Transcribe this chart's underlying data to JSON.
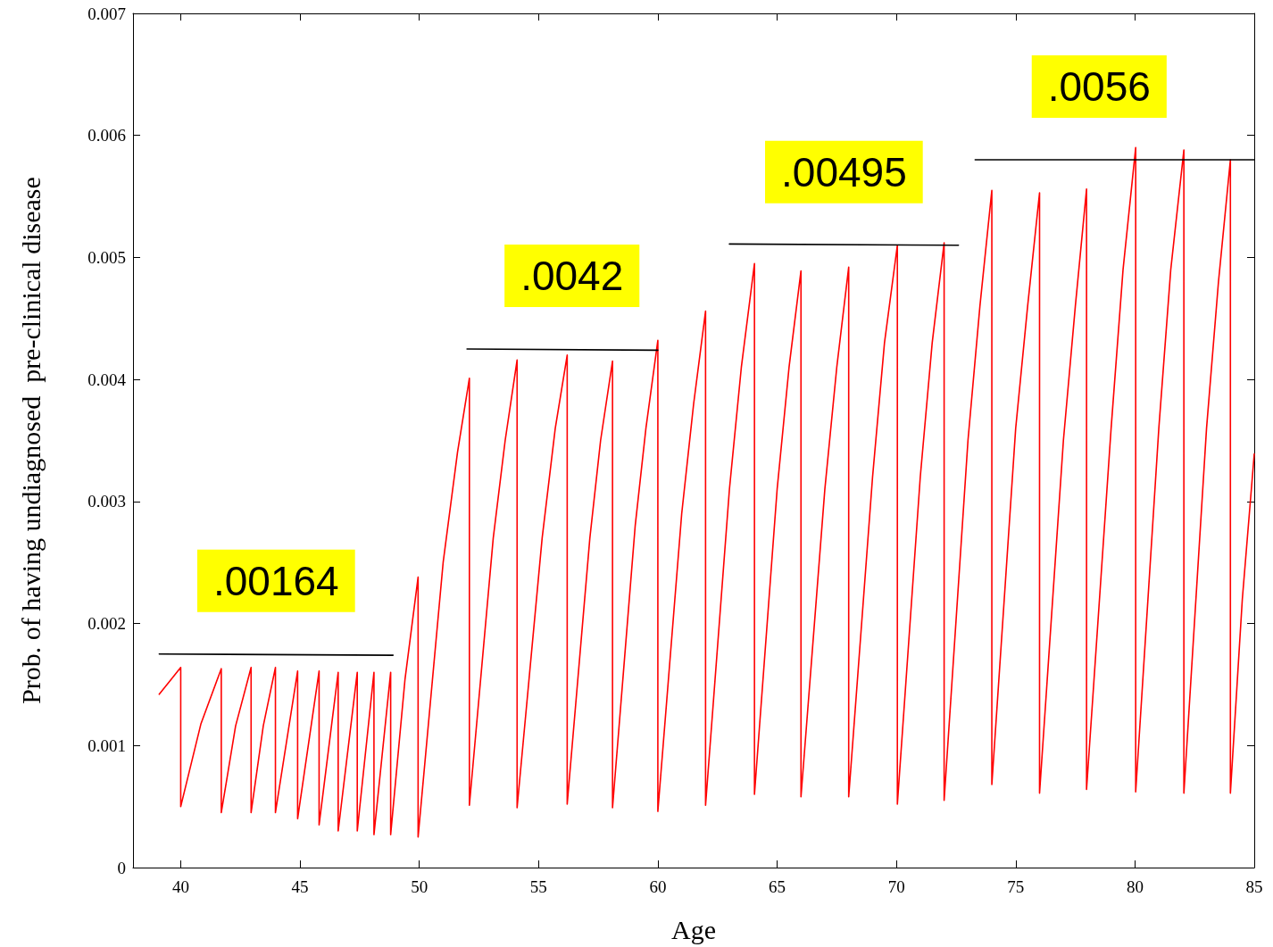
{
  "chart_data": {
    "type": "line",
    "xlabel": "Age",
    "ylabel": "Prob. of having undiagnosed  pre-clinical disease",
    "xlim": [
      38,
      85
    ],
    "xticks": [
      40,
      45,
      50,
      55,
      60,
      65,
      70,
      75,
      80,
      85
    ],
    "ylim": [
      0,
      0.007
    ],
    "yticks": [
      0,
      0.001,
      0.002,
      0.003,
      0.004,
      0.005,
      0.006,
      0.007
    ],
    "grid": false,
    "marker": "none",
    "line_style": "solid",
    "series": [
      {
        "color": "#ff0000",
        "x": [
          39.1,
          40.0,
          40.0,
          40.85,
          41.7,
          41.7,
          42.3,
          42.95,
          42.95,
          43.46,
          43.97,
          43.97,
          44.9,
          44.9,
          45.8,
          45.8,
          46.6,
          46.6,
          47.4,
          47.4,
          48.1,
          48.1,
          48.8,
          48.8,
          49.4,
          49.95,
          49.95,
          51.0,
          51.6,
          52.1,
          52.1,
          53.1,
          53.6,
          54.1,
          54.1,
          55.15,
          55.7,
          56.2,
          56.2,
          57.15,
          57.6,
          58.1,
          58.1,
          59.05,
          59.5,
          60.0,
          60.0,
          61.0,
          61.5,
          62.0,
          62.0,
          63.0,
          63.5,
          64.05,
          64.05,
          65.0,
          65.5,
          66.0,
          66.0,
          67.0,
          67.5,
          68.0,
          68.0,
          69.0,
          69.5,
          70.04,
          70.04,
          71.0,
          71.5,
          72.0,
          72.0,
          73.0,
          73.5,
          74.0,
          74.0,
          75.0,
          75.5,
          76.0,
          76.0,
          77.0,
          77.5,
          77.97,
          77.97,
          79.0,
          79.5,
          80.03,
          80.03,
          81.0,
          81.5,
          82.05,
          82.05,
          83.0,
          83.5,
          84.0,
          84.0,
          84.5,
          85.0
        ],
        "values": [
          0.00142,
          0.00164,
          0.0005,
          0.00118,
          0.00163,
          0.00045,
          0.00116,
          0.00164,
          0.00045,
          0.00116,
          0.00164,
          0.00045,
          0.00161,
          0.0004,
          0.00161,
          0.00035,
          0.0016,
          0.0003,
          0.0016,
          0.0003,
          0.0016,
          0.00027,
          0.0016,
          0.00027,
          0.00154,
          0.00238,
          0.00025,
          0.0025,
          0.0034,
          0.00401,
          0.00051,
          0.0027,
          0.0035,
          0.00416,
          0.00049,
          0.0027,
          0.0036,
          0.0042,
          0.00052,
          0.0027,
          0.0035,
          0.00415,
          0.00049,
          0.0028,
          0.0036,
          0.00432,
          0.00046,
          0.0029,
          0.0038,
          0.00456,
          0.00051,
          0.0031,
          0.0041,
          0.00495,
          0.0006,
          0.0031,
          0.0041,
          0.00489,
          0.00058,
          0.0031,
          0.0041,
          0.00492,
          0.00058,
          0.0032,
          0.0043,
          0.0051,
          0.00052,
          0.0032,
          0.0043,
          0.00512,
          0.00055,
          0.0035,
          0.0046,
          0.00555,
          0.00068,
          0.0036,
          0.0046,
          0.00553,
          0.00061,
          0.0035,
          0.0046,
          0.00556,
          0.00064,
          0.0036,
          0.0049,
          0.0059,
          0.00062,
          0.0036,
          0.0049,
          0.00588,
          0.00061,
          0.0036,
          0.0048,
          0.0058,
          0.00061,
          0.0022,
          0.00339
        ]
      },
      {
        "color": "#000000",
        "x": [
          39.1,
          48.9
        ],
        "values": [
          0.00175,
          0.00174
        ]
      },
      {
        "color": "#000000",
        "x": [
          52.0,
          60.0
        ],
        "values": [
          0.00425,
          0.00424
        ]
      },
      {
        "color": "#000000",
        "x": [
          63.0,
          72.6
        ],
        "values": [
          0.00511,
          0.0051
        ]
      },
      {
        "color": "#000000",
        "x": [
          73.3,
          85.0
        ],
        "values": [
          0.0058,
          0.0058
        ]
      }
    ],
    "annotations": [
      {
        "text": ".00164",
        "x": 44.0,
        "y": 0.00175
      },
      {
        "text": ".0042",
        "x": 56.4,
        "y": 0.00425
      },
      {
        "text": ".00495",
        "x": 67.8,
        "y": 0.0051
      },
      {
        "text": ".0056",
        "x": 78.5,
        "y": 0.0058
      }
    ]
  }
}
